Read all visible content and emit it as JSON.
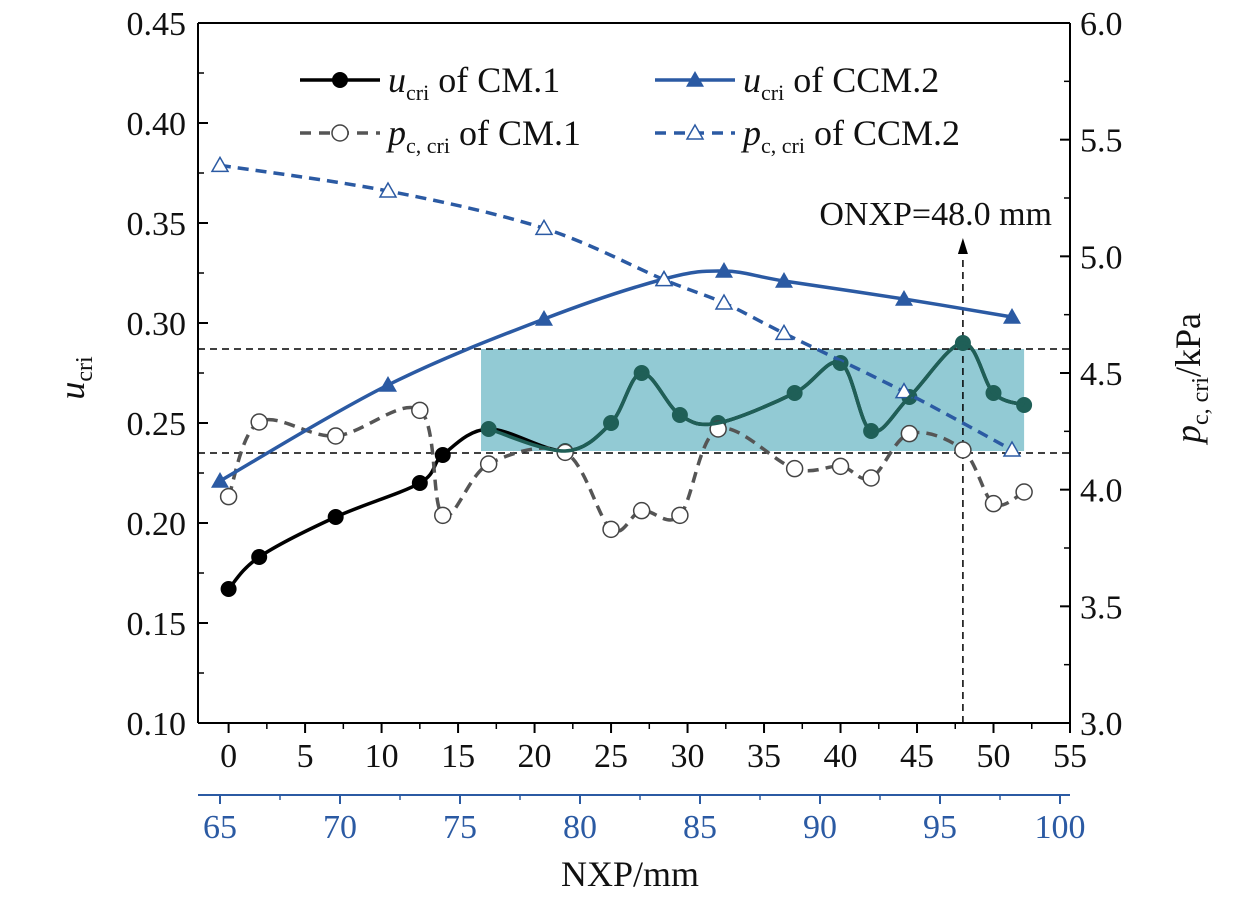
{
  "chart_data": {
    "type": "line",
    "title": "",
    "xlabel": "NXP/mm",
    "xlim": [
      -2,
      55
    ],
    "xticks": [
      "0",
      "5",
      "10",
      "15",
      "20",
      "25",
      "30",
      "35",
      "40",
      "45",
      "50",
      "55"
    ],
    "x2lim": [
      65,
      100
    ],
    "x2ticks": [
      "65",
      "70",
      "75",
      "80",
      "85",
      "90",
      "95",
      "100"
    ],
    "ylabel": {
      "main": "u",
      "sub": "cri"
    },
    "ylim": [
      0.1,
      0.45
    ],
    "yticks": [
      "0.10",
      "0.15",
      "0.20",
      "0.25",
      "0.30",
      "0.35",
      "0.40",
      "0.45"
    ],
    "y2label": {
      "main": "p",
      "sub": "c, cri",
      "suffix": "/kPa"
    },
    "y2lim": [
      3.0,
      6.0
    ],
    "y2ticks": [
      "3.0",
      "3.5",
      "4.0",
      "4.5",
      "5.0",
      "5.5",
      "6.0"
    ],
    "legend_position": "top",
    "series": [
      {
        "name": "u_cri of CM.1",
        "legend": {
          "main": "u",
          "sub": "cri",
          "rest": " of CM.1"
        },
        "axis": "left-bottom",
        "style": "solid",
        "marker": "filled-circle",
        "color": "#000000",
        "x": [
          0,
          2,
          7,
          12.5,
          14,
          17,
          22,
          25,
          27,
          29.5,
          32,
          37,
          40,
          42,
          44.5,
          48,
          50,
          52
        ],
        "y": [
          0.167,
          0.183,
          0.203,
          0.22,
          0.234,
          0.247,
          0.236,
          0.25,
          0.275,
          0.254,
          0.25,
          0.265,
          0.28,
          0.246,
          0.263,
          0.29,
          0.265,
          0.259
        ]
      },
      {
        "name": "p_c,cri of CM.1",
        "legend": {
          "main": "p",
          "sub": "c, cri",
          "rest": " of CM.1"
        },
        "axis": "right-bottom",
        "style": "dashed",
        "marker": "open-circle",
        "color": "#555555",
        "x": [
          0,
          2,
          7,
          12.5,
          14,
          17,
          22,
          25,
          27,
          29.5,
          32,
          37,
          40,
          42,
          44.5,
          48,
          50,
          52
        ],
        "y": [
          3.97,
          4.29,
          4.23,
          4.34,
          3.89,
          4.11,
          4.16,
          3.83,
          3.91,
          3.89,
          4.26,
          4.09,
          4.1,
          4.05,
          4.24,
          4.17,
          3.94,
          3.99
        ]
      },
      {
        "name": "u_cri of CCM.2",
        "legend": {
          "main": "u",
          "sub": "cri",
          "rest": " of CCM.2"
        },
        "axis": "left-top",
        "style": "solid",
        "marker": "filled-triangle",
        "color": "#2b5aa3",
        "x": [
          65,
          72,
          78.5,
          83.5,
          86,
          88.5,
          93.5,
          98
        ],
        "y": [
          0.221,
          0.269,
          0.302,
          0.322,
          0.326,
          0.321,
          0.312,
          0.303
        ]
      },
      {
        "name": "p_c,cri of CCM.2",
        "legend": {
          "main": "p",
          "sub": "c, cri",
          "rest": " of CCM.2"
        },
        "axis": "right-top",
        "style": "dashed",
        "marker": "open-triangle",
        "color": "#2b5aa3",
        "x": [
          65,
          72,
          78.5,
          83.5,
          86,
          88.5,
          93.5,
          98
        ],
        "y": [
          5.39,
          5.28,
          5.12,
          4.9,
          4.8,
          4.67,
          4.42,
          4.17
        ]
      }
    ],
    "annotations": [
      {
        "text": "ONXP=48.0 mm",
        "x": 48
      }
    ],
    "highlight": {
      "x": [
        16.5,
        52.0
      ],
      "y": [
        0.236,
        0.287
      ],
      "color": "#7fc1cc"
    },
    "reference_lines": {
      "y": [
        0.287,
        0.235
      ],
      "x": [
        48
      ]
    }
  }
}
